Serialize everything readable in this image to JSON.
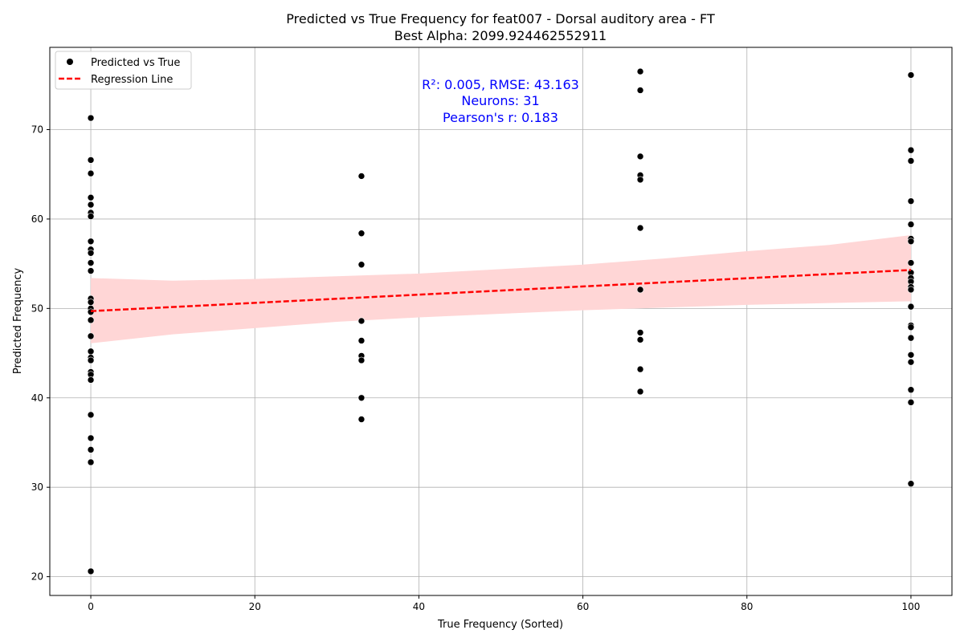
{
  "chart_data": {
    "type": "scatter",
    "title": "Predicted vs True Frequency for feat007 - Dorsal auditory area - FT",
    "subtitle": "Best Alpha: 2099.924462552911",
    "xlabel": "True Frequency (Sorted)",
    "ylabel": "Predicted Frequency",
    "xlim": [
      -5,
      105
    ],
    "ylim": [
      17.9,
      79.2
    ],
    "xticks": [
      0,
      20,
      40,
      60,
      80,
      100
    ],
    "yticks": [
      20,
      30,
      40,
      50,
      60,
      70
    ],
    "grid": true,
    "legend_position": "top-left",
    "legend": [
      {
        "label": "Predicted vs True",
        "marker": "dot",
        "color": "#000000"
      },
      {
        "label": "Regression Line",
        "marker": "dashed-line",
        "color": "#ff0000"
      }
    ],
    "annotations": [
      "R²: 0.005, RMSE: 43.163",
      "Neurons: 31",
      "Pearson's r: 0.183"
    ],
    "annotation_color": "#0000ff",
    "series": [
      {
        "name": "Predicted vs True",
        "color": "#000000",
        "points": [
          [
            0,
            71.3
          ],
          [
            0,
            66.6
          ],
          [
            0,
            65.1
          ],
          [
            0,
            62.4
          ],
          [
            0,
            61.6
          ],
          [
            0,
            60.7
          ],
          [
            0,
            60.3
          ],
          [
            0,
            57.5
          ],
          [
            0,
            56.6
          ],
          [
            0,
            56.2
          ],
          [
            0,
            55.1
          ],
          [
            0,
            54.2
          ],
          [
            0,
            51.1
          ],
          [
            0,
            50.7
          ],
          [
            0,
            50.0
          ],
          [
            0,
            49.6
          ],
          [
            0,
            48.7
          ],
          [
            0,
            46.9
          ],
          [
            0,
            45.2
          ],
          [
            0,
            44.5
          ],
          [
            0,
            44.2
          ],
          [
            0,
            42.9
          ],
          [
            0,
            42.6
          ],
          [
            0,
            42.0
          ],
          [
            0,
            38.1
          ],
          [
            0,
            35.5
          ],
          [
            0,
            34.2
          ],
          [
            0,
            32.8
          ],
          [
            0,
            20.6
          ],
          [
            33,
            64.8
          ],
          [
            33,
            58.4
          ],
          [
            33,
            54.9
          ],
          [
            33,
            48.6
          ],
          [
            33,
            46.4
          ],
          [
            33,
            44.7
          ],
          [
            33,
            44.2
          ],
          [
            33,
            40.0
          ],
          [
            33,
            37.6
          ],
          [
            67,
            76.5
          ],
          [
            67,
            74.4
          ],
          [
            67,
            67.0
          ],
          [
            67,
            64.9
          ],
          [
            67,
            64.4
          ],
          [
            67,
            59.0
          ],
          [
            67,
            52.1
          ],
          [
            67,
            47.3
          ],
          [
            67,
            46.5
          ],
          [
            67,
            43.2
          ],
          [
            67,
            40.7
          ],
          [
            100,
            76.1
          ],
          [
            100,
            67.7
          ],
          [
            100,
            66.5
          ],
          [
            100,
            62.0
          ],
          [
            100,
            59.4
          ],
          [
            100,
            57.8
          ],
          [
            100,
            57.5
          ],
          [
            100,
            55.1
          ],
          [
            100,
            54.0
          ],
          [
            100,
            53.4
          ],
          [
            100,
            53.0
          ],
          [
            100,
            52.4
          ],
          [
            100,
            52.1
          ],
          [
            100,
            50.2
          ],
          [
            100,
            48.1
          ],
          [
            100,
            47.9
          ],
          [
            100,
            46.7
          ],
          [
            100,
            44.8
          ],
          [
            100,
            44.0
          ],
          [
            100,
            40.9
          ],
          [
            100,
            39.5
          ],
          [
            100,
            30.4
          ]
        ]
      },
      {
        "name": "Regression Line",
        "type": "line",
        "style": "dashed",
        "color": "#ff0000",
        "x": [
          0,
          100
        ],
        "y": [
          49.7,
          54.3
        ]
      }
    ],
    "confidence_band": {
      "color": "#ffd6d6",
      "x": [
        0,
        10,
        20,
        30,
        40,
        50,
        60,
        70,
        80,
        90,
        100
      ],
      "lower": [
        46.1,
        47.1,
        47.8,
        48.5,
        49.0,
        49.4,
        49.8,
        50.1,
        50.4,
        50.6,
        50.8
      ],
      "upper": [
        53.4,
        53.1,
        53.3,
        53.6,
        53.9,
        54.4,
        54.9,
        55.6,
        56.4,
        57.1,
        58.2
      ]
    }
  }
}
